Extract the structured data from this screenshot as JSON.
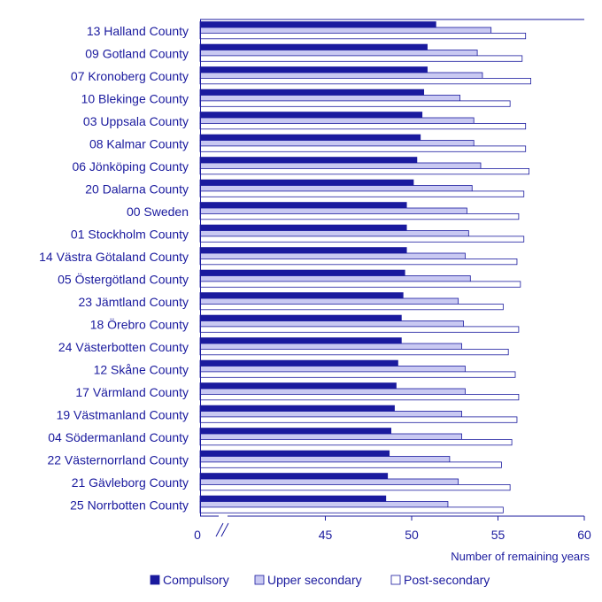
{
  "chart_data": {
    "type": "bar",
    "orientation": "horizontal",
    "categories": [
      "13 Halland County",
      "09 Gotland County",
      "07 Kronoberg County",
      "10 Blekinge County",
      "03 Uppsala County",
      "08 Kalmar County",
      "06 Jönköping County",
      "20 Dalarna County",
      "00 Sweden",
      "01 Stockholm County",
      "14 Västra Götaland County",
      "05 Östergötland County",
      "23 Jämtland County",
      "18 Örebro County",
      "24 Västerbotten County",
      "12 Skåne County",
      "17 Värmland County",
      "19 Västmanland County",
      "04 Södermanland County",
      "22 Västernorrland County",
      "21 Gävleborg County",
      "25 Norrbotten County"
    ],
    "series": [
      {
        "name": "Compulsory",
        "color": "#1a1a9e",
        "values": [
          51.4,
          50.9,
          50.9,
          50.7,
          50.6,
          50.5,
          50.3,
          50.1,
          49.7,
          49.7,
          49.7,
          49.6,
          49.5,
          49.4,
          49.4,
          49.2,
          49.1,
          49.0,
          48.8,
          48.7,
          48.6,
          48.5
        ]
      },
      {
        "name": "Upper secondary",
        "color": "#c9c9f2",
        "values": [
          54.6,
          53.8,
          54.1,
          52.8,
          53.6,
          53.6,
          54.0,
          53.5,
          53.2,
          53.3,
          53.1,
          53.4,
          52.7,
          53.0,
          52.9,
          53.1,
          53.1,
          52.9,
          52.9,
          52.2,
          52.7,
          52.1
        ]
      },
      {
        "name": "Post-secondary",
        "color": "#ffffff",
        "values": [
          56.6,
          56.4,
          56.9,
          55.7,
          56.6,
          56.6,
          56.8,
          56.5,
          56.2,
          56.5,
          56.1,
          56.3,
          55.3,
          56.2,
          55.6,
          56.0,
          56.2,
          56.1,
          55.8,
          55.2,
          55.7,
          55.3
        ]
      }
    ],
    "xlabel": "Number of remaining years",
    "ylabel": "",
    "title": "",
    "xlim": [
      40,
      60
    ],
    "axis_break": true,
    "axis_zero_label": "0",
    "xticks": [
      45,
      50,
      55,
      60
    ],
    "grid": false,
    "legend": "bottom"
  }
}
